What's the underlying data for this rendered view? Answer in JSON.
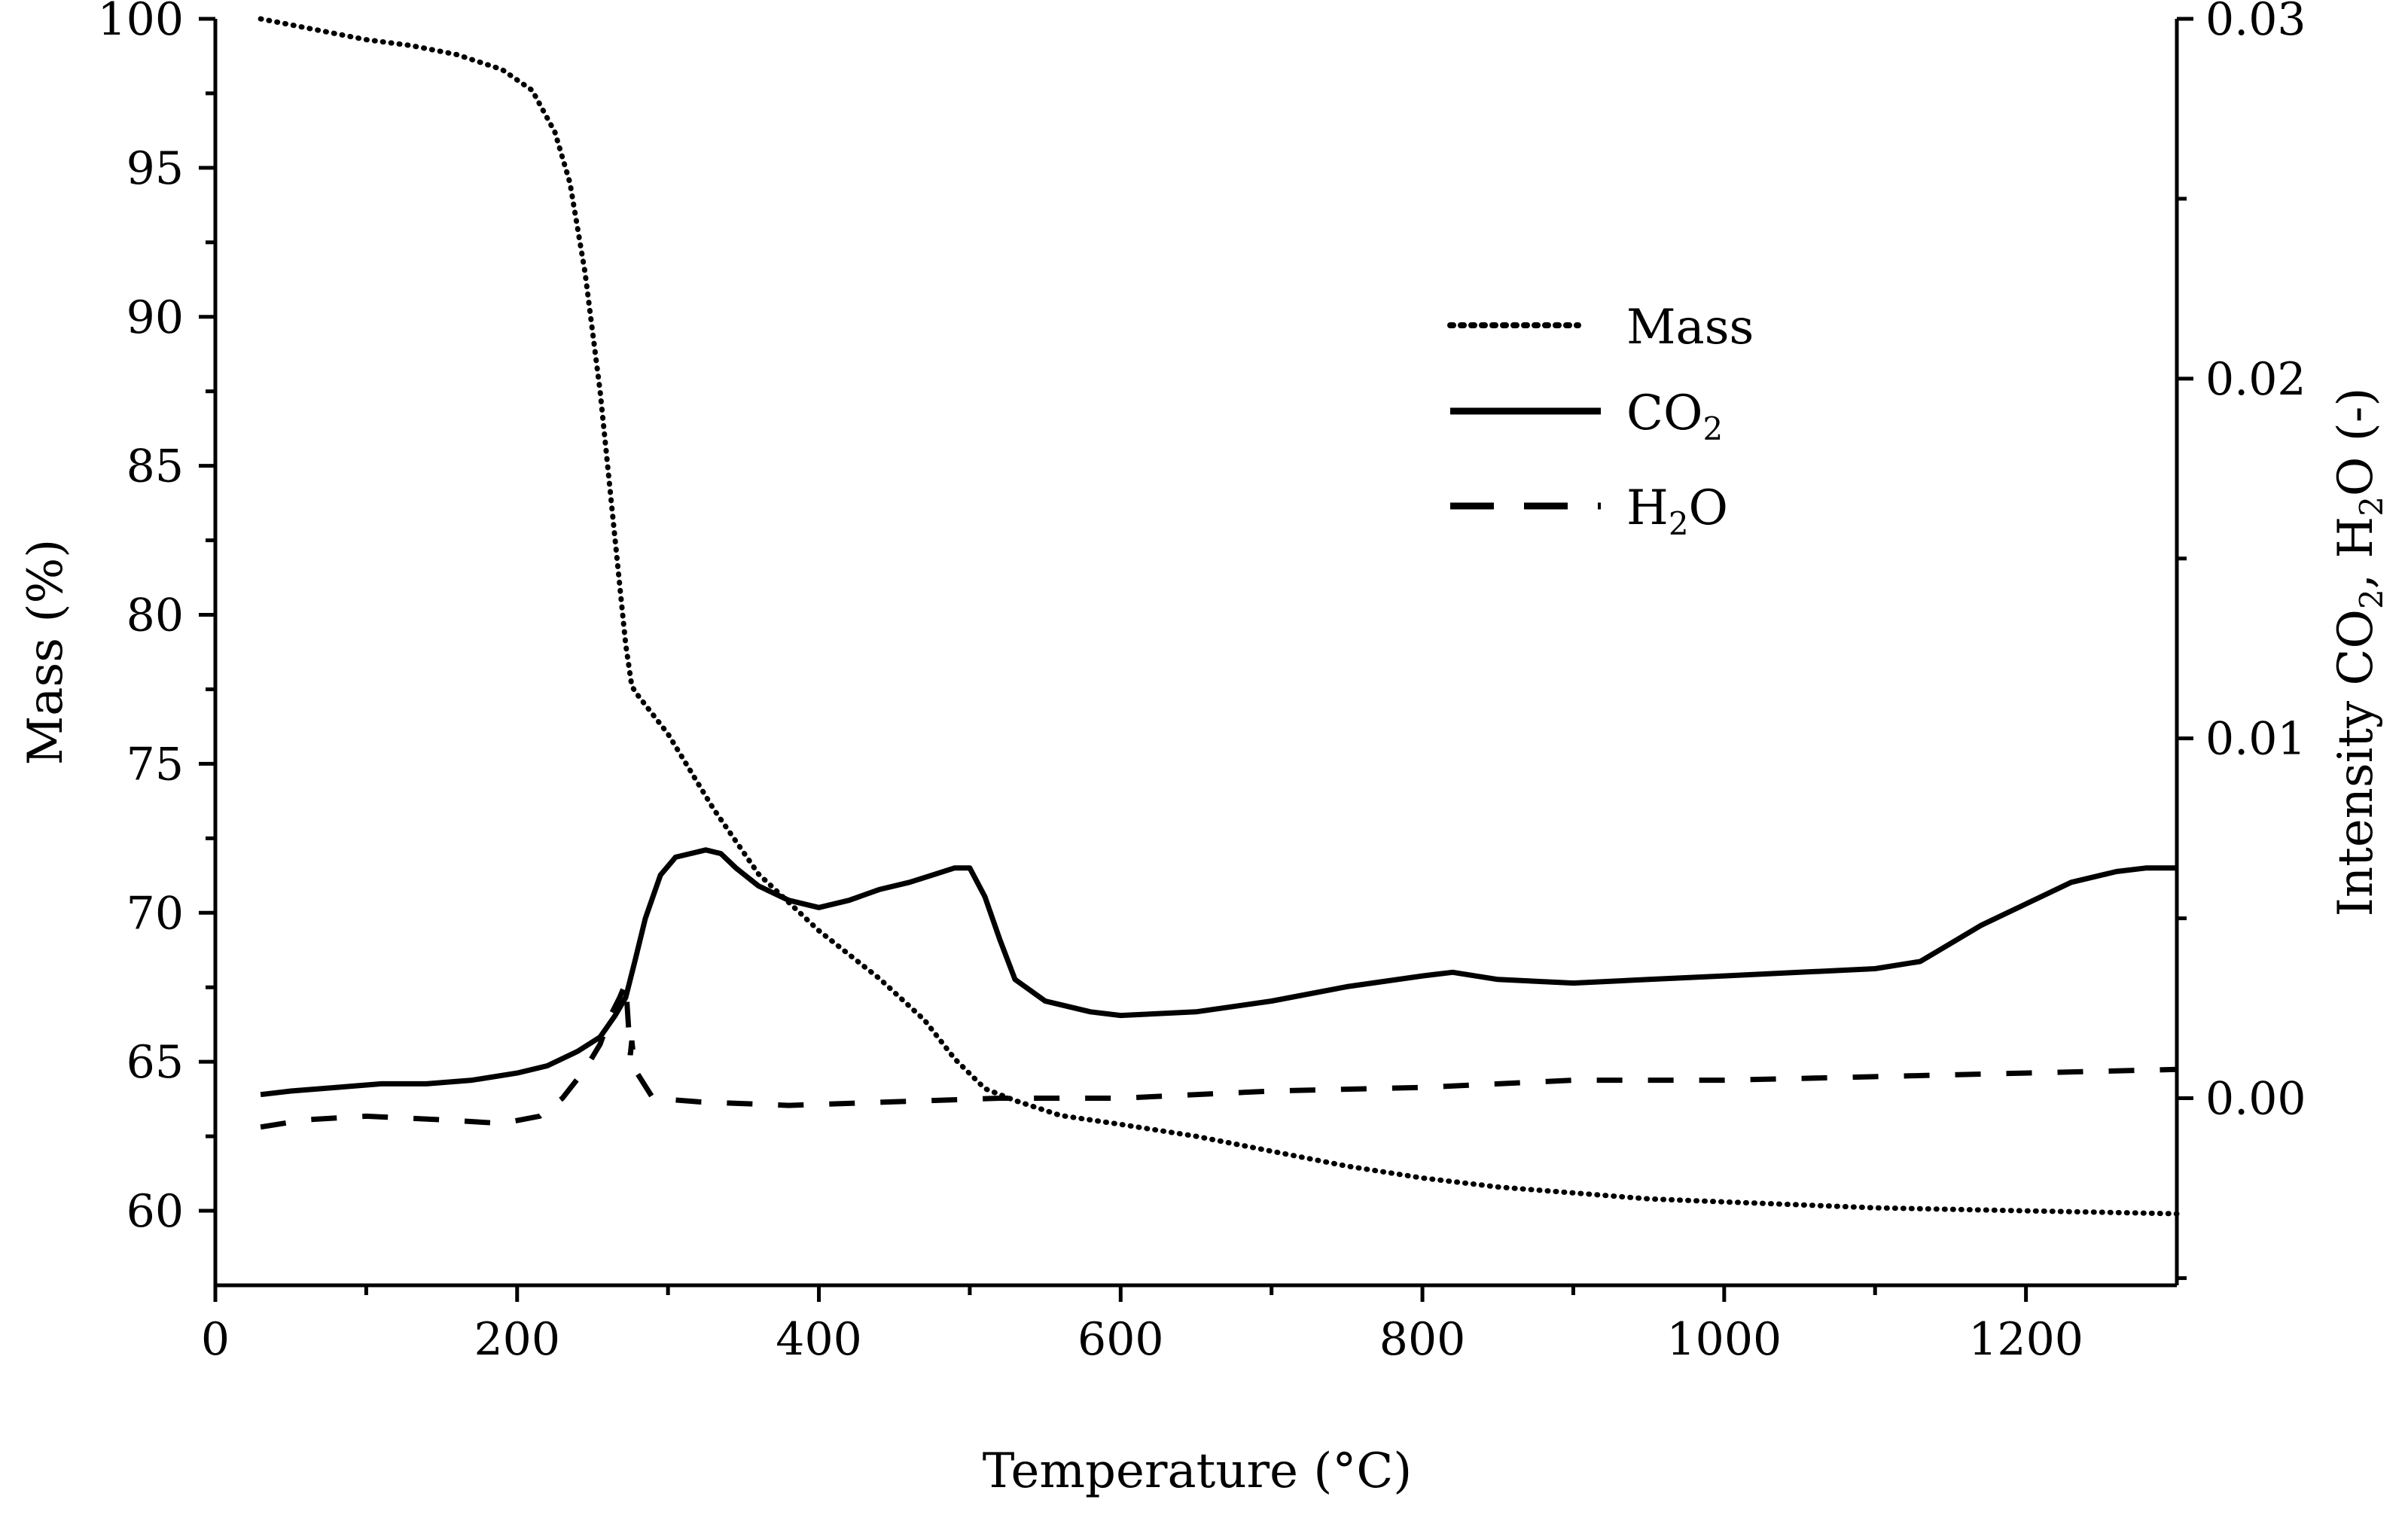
{
  "chart_data": {
    "type": "line",
    "title": "",
    "xlabel": "Temperature (°C)",
    "ylabel": "Mass (%)",
    "y2label": {
      "parts": [
        "Intensity CO",
        "2",
        ", H",
        "2",
        "O (-)"
      ]
    },
    "xlim": [
      0,
      1300
    ],
    "ylim": [
      57.5,
      100
    ],
    "y2lim": [
      -0.0052,
      0.03
    ],
    "x_ticks": [
      0,
      200,
      400,
      600,
      800,
      1000,
      1200
    ],
    "x_tick_labels": [
      "0",
      "200",
      "400",
      "600",
      "800",
      "1000",
      "1200"
    ],
    "y_ticks": [
      60,
      65,
      70,
      75,
      80,
      85,
      90,
      95,
      100
    ],
    "y_tick_labels": [
      "60",
      "65",
      "70",
      "75",
      "80",
      "85",
      "90",
      "95",
      "100"
    ],
    "y2_ticks": [
      0.0,
      0.01,
      0.02,
      0.03
    ],
    "y2_tick_labels": [
      "0.00",
      "0.01",
      "0.02",
      "0.03"
    ],
    "legend": {
      "position": "top-center",
      "entries": [
        {
          "label": "Mass",
          "style": "dotted",
          "subscript": ""
        },
        {
          "label": "CO",
          "style": "solid",
          "subscript": "2"
        },
        {
          "label": "H",
          "style": "dashed",
          "subscript": "2",
          "suffix": "O"
        }
      ]
    },
    "series": [
      {
        "name": "Mass",
        "axis": "left",
        "style": "dotted",
        "x": [
          30,
          60,
          100,
          130,
          160,
          190,
          210,
          225,
          235,
          245,
          255,
          262,
          268,
          272,
          276,
          280,
          300,
          330,
          360,
          400,
          440,
          470,
          490,
          510,
          530,
          560,
          600,
          650,
          700,
          750,
          800,
          850,
          900,
          950,
          1000,
          1050,
          1100,
          1150,
          1200,
          1250,
          1300
        ],
        "values": [
          100,
          99.7,
          99.3,
          99.1,
          98.8,
          98.3,
          97.6,
          96.2,
          94.5,
          91.5,
          87.5,
          84.0,
          81.0,
          79.0,
          77.6,
          77.3,
          76.0,
          73.5,
          71.3,
          69.4,
          67.8,
          66.4,
          65.1,
          64.1,
          63.7,
          63.2,
          62.9,
          62.5,
          62.0,
          61.5,
          61.1,
          60.8,
          60.6,
          60.4,
          60.3,
          60.2,
          60.1,
          60.05,
          60.0,
          59.95,
          59.9
        ]
      },
      {
        "name": "CO2",
        "axis": "right",
        "style": "solid",
        "x": [
          30,
          50,
          80,
          110,
          140,
          170,
          200,
          220,
          240,
          255,
          265,
          272,
          278,
          285,
          295,
          305,
          315,
          325,
          335,
          345,
          360,
          380,
          400,
          420,
          440,
          460,
          475,
          490,
          500,
          510,
          520,
          530,
          550,
          580,
          600,
          650,
          700,
          750,
          800,
          820,
          850,
          900,
          950,
          1000,
          1050,
          1100,
          1130,
          1150,
          1170,
          1200,
          1230,
          1260,
          1280,
          1300
        ],
        "values": [
          0.0001,
          0.0002,
          0.0003,
          0.0004,
          0.0004,
          0.0005,
          0.0007,
          0.0009,
          0.0013,
          0.0017,
          0.0023,
          0.0028,
          0.0038,
          0.005,
          0.0062,
          0.0067,
          0.0068,
          0.0069,
          0.0068,
          0.0064,
          0.0059,
          0.0055,
          0.0053,
          0.0055,
          0.0058,
          0.006,
          0.0062,
          0.0064,
          0.0064,
          0.0056,
          0.0044,
          0.0033,
          0.0027,
          0.0024,
          0.0023,
          0.0024,
          0.0027,
          0.0031,
          0.0034,
          0.0035,
          0.0033,
          0.0032,
          0.0033,
          0.0034,
          0.0035,
          0.0036,
          0.0038,
          0.0043,
          0.0048,
          0.0054,
          0.006,
          0.0063,
          0.0064,
          0.0064
        ]
      },
      {
        "name": "H2O",
        "axis": "right",
        "style": "dashed",
        "x": [
          30,
          60,
          100,
          150,
          190,
          215,
          230,
          245,
          255,
          262,
          268,
          272,
          275,
          276,
          278,
          290,
          320,
          380,
          450,
          520,
          600,
          700,
          800,
          900,
          1000,
          1100,
          1200,
          1300
        ],
        "values": [
          -0.0008,
          -0.0006,
          -0.0005,
          -0.0006,
          -0.0007,
          -0.0005,
          0.0,
          0.0008,
          0.0015,
          0.0023,
          0.0028,
          0.0032,
          0.0012,
          0.0016,
          0.0008,
          0.0,
          -0.0001,
          -0.0002,
          -0.0001,
          0.0,
          0.0,
          0.0002,
          0.0003,
          0.0005,
          0.0005,
          0.0006,
          0.0007,
          0.0008
        ]
      }
    ]
  }
}
